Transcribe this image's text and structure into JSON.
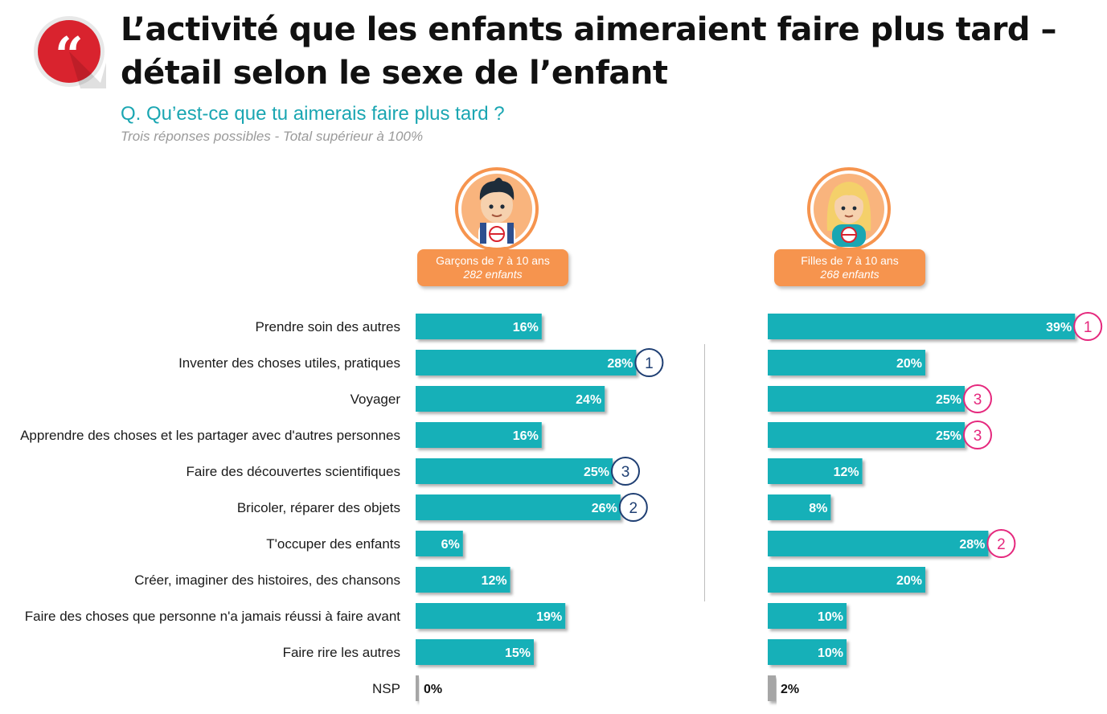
{
  "title_line1": "L’activité que les enfants aimeraient faire plus tard –",
  "title_line2": "détail selon le sexe de l’enfant",
  "question": "Q. Qu’est-ce que tu aimerais faire plus tard ?",
  "subtitle": "Trois réponses possibles - Total supérieur à 100%",
  "icons": {
    "quote": "quote-icon",
    "boy": "boy-avatar-icon",
    "girl": "girl-avatar-icon"
  },
  "colors": {
    "bar": "#18b0b8",
    "nsp_bar": "#a6a6a6",
    "header": "#f6944e",
    "quote_circle": "#d9232e",
    "rank_boys": "#1f3f73",
    "rank_girls": "#e5287d",
    "question": "#1aa6b2"
  },
  "groups": {
    "boys": {
      "label": "Garçons de 7 à 10 ans",
      "count": "282 enfants"
    },
    "girls": {
      "label": "Filles de 7 à 10 ans",
      "count": "268 enfants"
    }
  },
  "chart_data": {
    "type": "bar",
    "orientation": "horizontal",
    "categories": [
      "Prendre soin des autres",
      "Inventer des choses utiles, pratiques",
      "Voyager",
      "Apprendre des choses et les partager avec d'autres personnes",
      "Faire des découvertes scientifiques",
      "Bricoler, réparer des objets",
      "T'occuper des enfants",
      "Créer, imaginer des histoires, des chansons",
      "Faire des choses que personne n'a jamais réussi à faire avant",
      "Faire rire les autres",
      "NSP"
    ],
    "series": [
      {
        "name": "Garçons de 7 à 10 ans",
        "values": [
          16,
          28,
          24,
          16,
          25,
          26,
          6,
          12,
          19,
          15,
          0
        ],
        "labels": [
          "16%",
          "28%",
          "24%",
          "16%",
          "25%",
          "26%",
          "6%",
          "12%",
          "19%",
          "15%",
          "0%"
        ],
        "ranks": [
          null,
          "1",
          null,
          null,
          "3",
          "2",
          null,
          null,
          null,
          null,
          null
        ]
      },
      {
        "name": "Filles de 7 à 10 ans",
        "values": [
          39,
          20,
          25,
          25,
          12,
          8,
          28,
          20,
          10,
          10,
          2
        ],
        "labels": [
          "39%",
          "20%",
          "25%",
          "25%",
          "12%",
          "8%",
          "28%",
          "20%",
          "10%",
          "10%",
          "2%"
        ],
        "ranks": [
          "1",
          null,
          "3",
          "3",
          null,
          null,
          "2",
          null,
          null,
          null,
          null
        ]
      }
    ]
  }
}
